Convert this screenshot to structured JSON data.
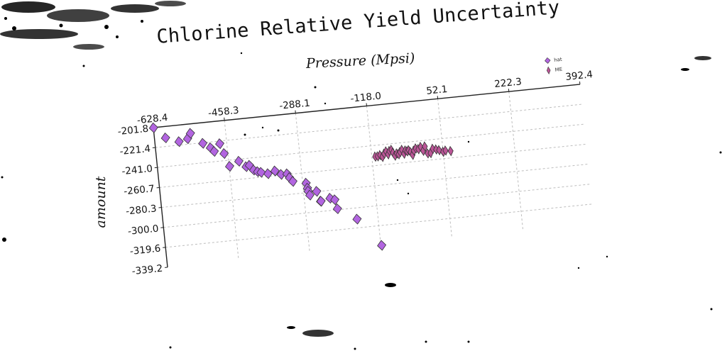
{
  "chart_data": {
    "type": "scatter",
    "title": "Chlorine Relative Yield Uncertainty",
    "xlabel": "Pressure (Mpsi)",
    "ylabel": "amount",
    "x_ticks": [
      "-628.4",
      "-458.3",
      "-288.1",
      "-118.0",
      "52.1",
      "222.3",
      "392.4"
    ],
    "y_ticks": [
      "-201.8",
      "-221.4",
      "-241.0",
      "-260.7",
      "-280.3",
      "-300.0",
      "-319.6",
      "-339.2"
    ],
    "xlim": [
      -628.4,
      392.4
    ],
    "ylim": [
      -339.2,
      -201.8
    ],
    "x_axis_position": "top",
    "grid": true,
    "legend": "top-right",
    "series": [
      {
        "name": "hat",
        "color": "#b265e0",
        "marker": "diamond",
        "points": [
          [
            -628,
            -202
          ],
          [
            -602,
            -213
          ],
          [
            -571,
            -218
          ],
          [
            -550,
            -216
          ],
          [
            -542,
            -211
          ],
          [
            -515,
            -222
          ],
          [
            -498,
            -227
          ],
          [
            -490,
            -231
          ],
          [
            -475,
            -224
          ],
          [
            -467,
            -234
          ],
          [
            -457,
            -247
          ],
          [
            -434,
            -243
          ],
          [
            -418,
            -249
          ],
          [
            -410,
            -248
          ],
          [
            -401,
            -253
          ],
          [
            -392,
            -255
          ],
          [
            -384,
            -256
          ],
          [
            -368,
            -258
          ],
          [
            -351,
            -256
          ],
          [
            -337,
            -260
          ],
          [
            -323,
            -260
          ],
          [
            -318,
            -264
          ],
          [
            -311,
            -268
          ],
          [
            -280,
            -271
          ],
          [
            -278,
            -276
          ],
          [
            -277,
            -279
          ],
          [
            -274,
            -283
          ],
          [
            -257,
            -280
          ],
          [
            -250,
            -290
          ],
          [
            -249,
            -290
          ],
          [
            -227,
            -288
          ],
          [
            -216,
            -290
          ],
          [
            -212,
            -299
          ],
          [
            -168,
            -311
          ],
          [
            -116,
            -339
          ]
        ]
      },
      {
        "name": "ME",
        "color": "#bb5597",
        "marker": "thin-diamond",
        "points": [
          [
            -110,
            -252
          ],
          [
            -104,
            -252
          ],
          [
            -98,
            -251
          ],
          [
            -93,
            -253
          ],
          [
            -88,
            -250
          ],
          [
            -83,
            -248
          ],
          [
            -79,
            -251
          ],
          [
            -75,
            -248
          ],
          [
            -70,
            -247
          ],
          [
            -67,
            -250
          ],
          [
            -63,
            -253
          ],
          [
            -58,
            -251
          ],
          [
            -54,
            -252
          ],
          [
            -50,
            -250
          ],
          [
            -45,
            -248
          ],
          [
            -41,
            -252
          ],
          [
            -37,
            -249
          ],
          [
            -33,
            -250
          ],
          [
            -29,
            -249
          ],
          [
            -25,
            -251
          ],
          [
            -21,
            -254
          ],
          [
            -17,
            -250
          ],
          [
            -12,
            -248
          ],
          [
            -6,
            -249
          ],
          [
            0,
            -247
          ],
          [
            5,
            -251
          ],
          [
            10,
            -247
          ],
          [
            15,
            -254
          ],
          [
            22,
            -254
          ],
          [
            28,
            -250
          ],
          [
            36,
            -251
          ],
          [
            43,
            -252
          ],
          [
            52,
            -254
          ],
          [
            58,
            -253
          ],
          [
            70,
            -254
          ]
        ]
      }
    ]
  }
}
